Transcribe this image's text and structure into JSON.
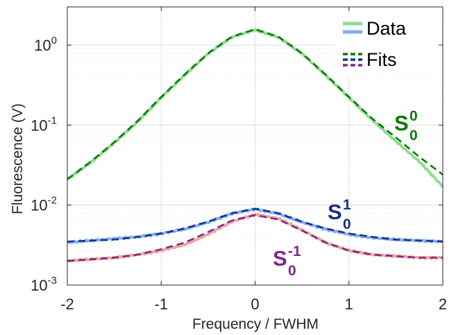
{
  "chart_data": {
    "type": "line",
    "xlabel": "Frequency / FWHM",
    "ylabel": "Fluorescence (V)",
    "xlim": [
      -2,
      2
    ],
    "ylim": [
      0.001,
      3
    ],
    "yscale": "log",
    "grid": true,
    "legend_position": "top-right",
    "x_ticks": [
      "-2",
      "-1",
      "0",
      "1",
      "2"
    ],
    "y_ticks": [
      {
        "value": 0.001,
        "base": "10",
        "exp": "-3"
      },
      {
        "value": 0.01,
        "base": "10",
        "exp": "-2"
      },
      {
        "value": 0.1,
        "base": "10",
        "exp": "-1"
      },
      {
        "value": 1,
        "base": "10",
        "exp": "0"
      }
    ],
    "legend": {
      "data_label": "Data",
      "fits_label": "Fits"
    },
    "colors": {
      "S00_data": "#8fdc8f",
      "S00_fit": "#0a7a0a",
      "S01_data": "#7fb0f0",
      "S01_fit": "#1a2f8a",
      "S0m1_data": "#eea6a0",
      "S0m1_fit": "#7a2a8a"
    },
    "series": [
      {
        "role": "S00",
        "x": [
          -2.0,
          -1.75,
          -1.5,
          -1.25,
          -1.0,
          -0.75,
          -0.5,
          -0.25,
          0.0,
          0.25,
          0.5,
          0.75,
          1.0,
          1.25,
          1.5,
          1.75,
          2.0
        ],
        "data": [
          0.021,
          0.034,
          0.06,
          0.11,
          0.22,
          0.42,
          0.78,
          1.25,
          1.55,
          1.25,
          0.78,
          0.42,
          0.22,
          0.115,
          0.063,
          0.035,
          0.017
        ],
        "fit": [
          0.021,
          0.035,
          0.061,
          0.113,
          0.225,
          0.43,
          0.79,
          1.27,
          1.58,
          1.27,
          0.79,
          0.43,
          0.225,
          0.12,
          0.07,
          0.04,
          0.024
        ]
      },
      {
        "role": "S01",
        "x": [
          -2.0,
          -1.75,
          -1.5,
          -1.25,
          -1.0,
          -0.75,
          -0.5,
          -0.25,
          0.0,
          0.25,
          0.5,
          0.75,
          1.0,
          1.25,
          1.5,
          1.75,
          2.0
        ],
        "data": [
          0.0034,
          0.0036,
          0.0038,
          0.004,
          0.0044,
          0.005,
          0.0061,
          0.0078,
          0.0089,
          0.0078,
          0.0061,
          0.005,
          0.0043,
          0.0039,
          0.0037,
          0.0036,
          0.0035
        ],
        "fit": [
          0.0035,
          0.0036,
          0.0037,
          0.004,
          0.0044,
          0.0051,
          0.0062,
          0.0079,
          0.009,
          0.0079,
          0.0062,
          0.0051,
          0.0044,
          0.004,
          0.0037,
          0.0036,
          0.0035
        ]
      },
      {
        "role": "S0m1",
        "x": [
          -2.0,
          -1.75,
          -1.5,
          -1.25,
          -1.0,
          -0.75,
          -0.5,
          -0.25,
          0.0,
          0.25,
          0.5,
          0.75,
          1.0,
          1.25,
          1.5,
          1.75,
          2.0
        ],
        "data": [
          0.002,
          0.0021,
          0.0022,
          0.0024,
          0.0027,
          0.0032,
          0.0043,
          0.0062,
          0.0076,
          0.0068,
          0.0049,
          0.0034,
          0.0027,
          0.0024,
          0.0023,
          0.0022,
          0.0022
        ],
        "fit": [
          0.002,
          0.0021,
          0.0022,
          0.0024,
          0.0028,
          0.0034,
          0.0046,
          0.0064,
          0.0075,
          0.0066,
          0.0048,
          0.0034,
          0.0027,
          0.0024,
          0.0023,
          0.0022,
          0.0022
        ]
      }
    ],
    "annotations": [
      {
        "role": "S00",
        "base": "S",
        "sub": "0",
        "sup": "0"
      },
      {
        "role": "S01",
        "base": "S",
        "sub": "0",
        "sup": "1"
      },
      {
        "role": "S0m1",
        "base": "S",
        "sub": "0",
        "sup": "-1"
      }
    ]
  }
}
